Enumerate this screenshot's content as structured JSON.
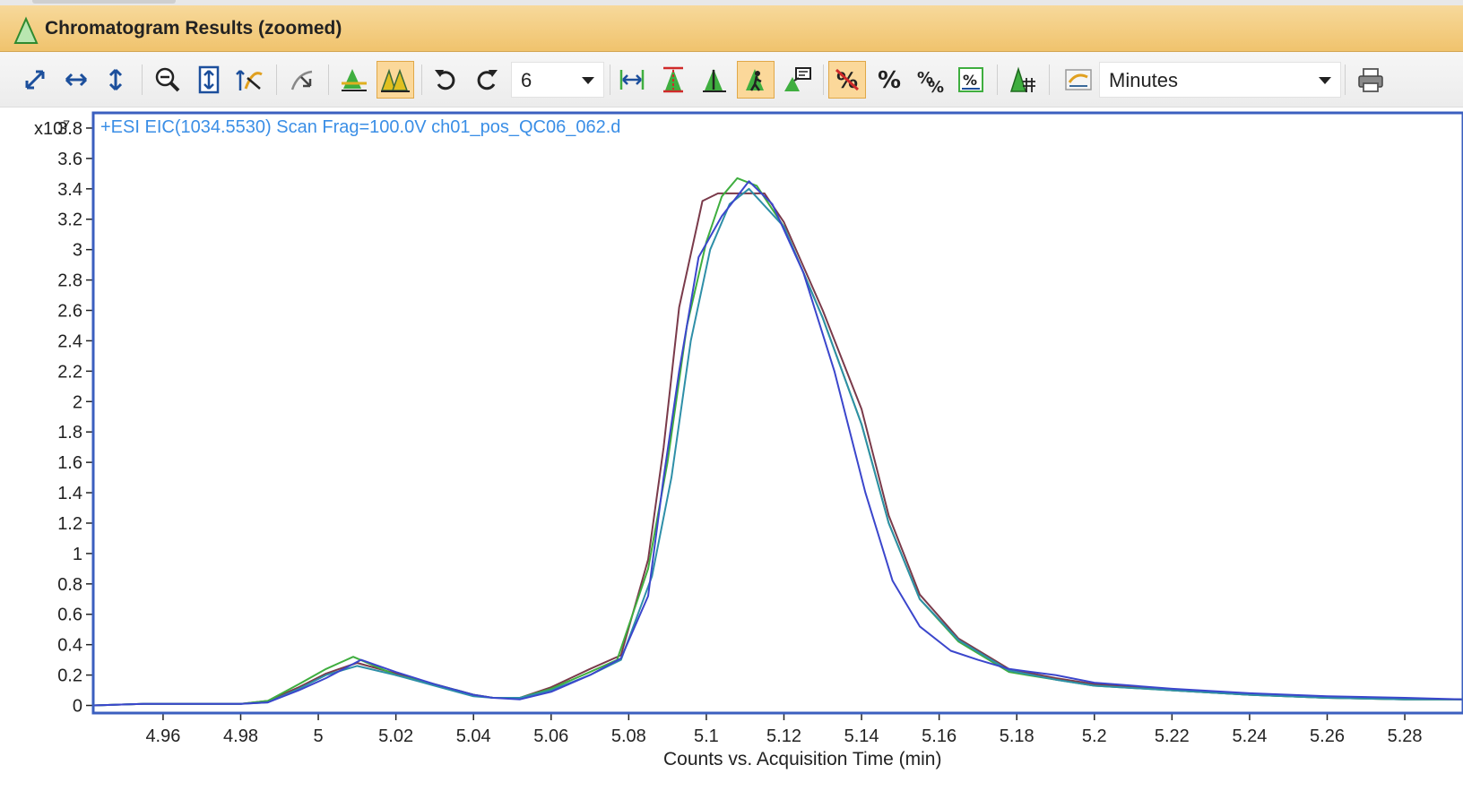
{
  "panel": {
    "title": "Chromatogram Results (zoomed)"
  },
  "toolbar": {
    "count_value": "6",
    "unit_value": "Minutes"
  },
  "colors": {
    "accent": "#f0c36d",
    "trace_label": "#3a8ee6",
    "frame": "#3b5fbf"
  },
  "chart_data": {
    "type": "line",
    "title": "",
    "trace_label": "+ESI EIC(1034.5530) Scan Frag=100.0V ch01_pos_QC06_062.d",
    "scale_prefix": "x10",
    "scale_exponent": "7",
    "xlabel": "Counts vs. Acquisition Time (min)",
    "ylabel": "",
    "xlim": [
      4.942,
      5.295
    ],
    "ylim": [
      -0.05,
      3.9
    ],
    "x_ticks": [
      "4.96",
      "4.98",
      "5",
      "5.02",
      "5.04",
      "5.06",
      "5.08",
      "5.1",
      "5.12",
      "5.14",
      "5.16",
      "5.18",
      "5.2",
      "5.22",
      "5.24",
      "5.26",
      "5.28"
    ],
    "y_ticks": [
      "3.8",
      "3.6",
      "3.4",
      "3.2",
      "3",
      "2.8",
      "2.6",
      "2.4",
      "2.2",
      "2",
      "1.8",
      "1.6",
      "1.4",
      "1.2",
      "1",
      "0.8",
      "0.6",
      "0.4",
      "0.2",
      "0"
    ],
    "grid": false,
    "series": [
      {
        "color": "#7a3a4a",
        "x": [
          4.942,
          4.955,
          4.97,
          4.98,
          4.987,
          4.995,
          5.002,
          5.01,
          5.02,
          5.03,
          5.04,
          5.045,
          5.052,
          5.06,
          5.07,
          5.078,
          5.085,
          5.089,
          5.093,
          5.099,
          5.103,
          5.109,
          5.115,
          5.12,
          5.13,
          5.14,
          5.147,
          5.155,
          5.165,
          5.178,
          5.19,
          5.2,
          5.22,
          5.24,
          5.26,
          5.28,
          5.295
        ],
        "y": [
          0,
          0.01,
          0.01,
          0.01,
          0.03,
          0.12,
          0.21,
          0.28,
          0.21,
          0.14,
          0.07,
          0.05,
          0.05,
          0.12,
          0.24,
          0.33,
          0.96,
          1.7,
          2.62,
          3.32,
          3.37,
          3.37,
          3.37,
          3.18,
          2.6,
          1.95,
          1.25,
          0.73,
          0.44,
          0.24,
          0.18,
          0.14,
          0.1,
          0.07,
          0.05,
          0.04,
          0.04
        ]
      },
      {
        "color": "#3fae3f",
        "x": [
          4.942,
          4.955,
          4.97,
          4.98,
          4.987,
          4.995,
          5.002,
          5.009,
          5.02,
          5.03,
          5.04,
          5.045,
          5.052,
          5.06,
          5.07,
          5.077,
          5.085,
          5.09,
          5.095,
          5.1,
          5.104,
          5.108,
          5.113,
          5.12,
          5.13,
          5.14,
          5.147,
          5.155,
          5.165,
          5.178,
          5.19,
          5.2,
          5.22,
          5.24,
          5.26,
          5.28,
          5.295
        ],
        "y": [
          0,
          0.01,
          0.01,
          0.01,
          0.03,
          0.14,
          0.24,
          0.32,
          0.2,
          0.14,
          0.07,
          0.05,
          0.05,
          0.11,
          0.22,
          0.3,
          0.9,
          1.6,
          2.5,
          3.05,
          3.35,
          3.47,
          3.42,
          3.15,
          2.55,
          1.85,
          1.2,
          0.7,
          0.42,
          0.22,
          0.17,
          0.13,
          0.1,
          0.07,
          0.05,
          0.04,
          0.04
        ]
      },
      {
        "color": "#2e8fa8",
        "x": [
          4.942,
          4.955,
          4.97,
          4.98,
          4.987,
          4.995,
          5.002,
          5.01,
          5.02,
          5.03,
          5.04,
          5.045,
          5.052,
          5.06,
          5.07,
          5.078,
          5.086,
          5.091,
          5.096,
          5.101,
          5.106,
          5.111,
          5.12,
          5.13,
          5.14,
          5.147,
          5.155,
          5.165,
          5.178,
          5.19,
          5.2,
          5.22,
          5.24,
          5.26,
          5.28,
          5.295
        ],
        "y": [
          0,
          0.01,
          0.01,
          0.01,
          0.02,
          0.11,
          0.2,
          0.26,
          0.2,
          0.13,
          0.06,
          0.05,
          0.05,
          0.1,
          0.2,
          0.3,
          0.85,
          1.5,
          2.4,
          3.0,
          3.3,
          3.4,
          3.15,
          2.55,
          1.85,
          1.2,
          0.7,
          0.43,
          0.23,
          0.17,
          0.13,
          0.1,
          0.07,
          0.05,
          0.04,
          0.04
        ]
      },
      {
        "color": "#3b46cc",
        "x": [
          4.942,
          4.955,
          4.97,
          4.98,
          4.987,
          4.995,
          5.002,
          5.011,
          5.02,
          5.03,
          5.04,
          5.045,
          5.052,
          5.06,
          5.07,
          5.078,
          5.085,
          5.089,
          5.093,
          5.098,
          5.104,
          5.111,
          5.117,
          5.125,
          5.133,
          5.141,
          5.148,
          5.155,
          5.163,
          5.17,
          5.178,
          5.19,
          5.2,
          5.22,
          5.24,
          5.26,
          5.28,
          5.295
        ],
        "y": [
          0,
          0.01,
          0.01,
          0.01,
          0.02,
          0.1,
          0.18,
          0.3,
          0.22,
          0.14,
          0.07,
          0.05,
          0.04,
          0.09,
          0.2,
          0.31,
          0.72,
          1.5,
          2.2,
          2.95,
          3.22,
          3.45,
          3.3,
          2.85,
          2.2,
          1.4,
          0.82,
          0.52,
          0.36,
          0.3,
          0.24,
          0.2,
          0.15,
          0.11,
          0.08,
          0.06,
          0.05,
          0.04
        ]
      }
    ]
  }
}
